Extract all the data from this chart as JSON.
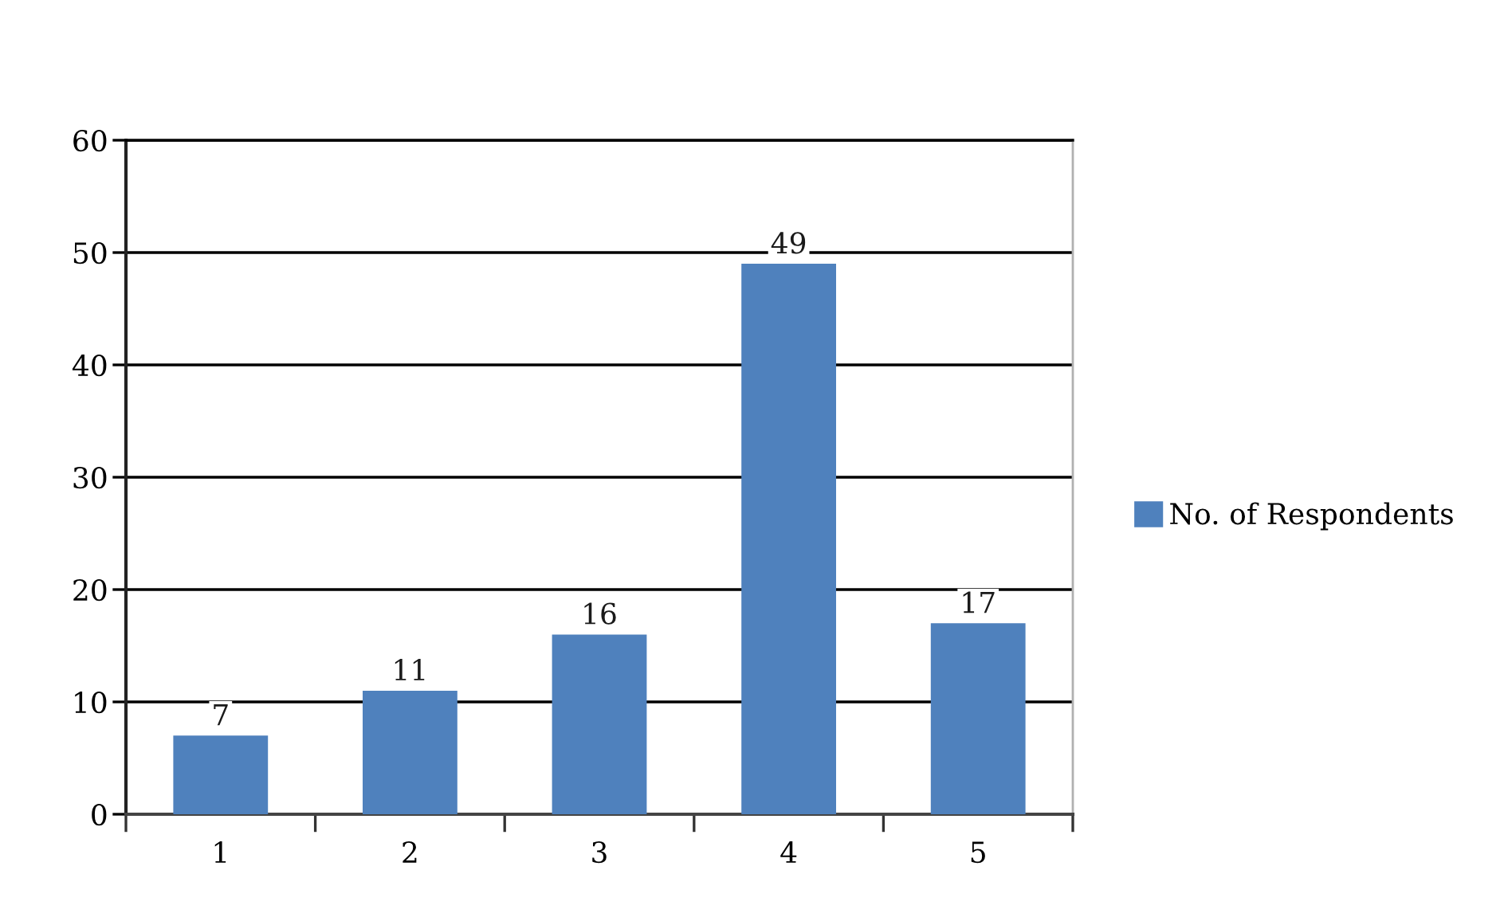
{
  "chart_data": {
    "type": "bar",
    "categories": [
      "1",
      "2",
      "3",
      "4",
      "5"
    ],
    "series": [
      {
        "name": "No. of Respondents",
        "color": "#4f81bd",
        "values": [
          7,
          11,
          16,
          49,
          17
        ]
      }
    ],
    "ylim": [
      0,
      60
    ],
    "yticks": [
      0,
      10,
      20,
      30,
      40,
      50,
      60
    ],
    "grid": "y",
    "legend": "right",
    "data_labels": true
  }
}
